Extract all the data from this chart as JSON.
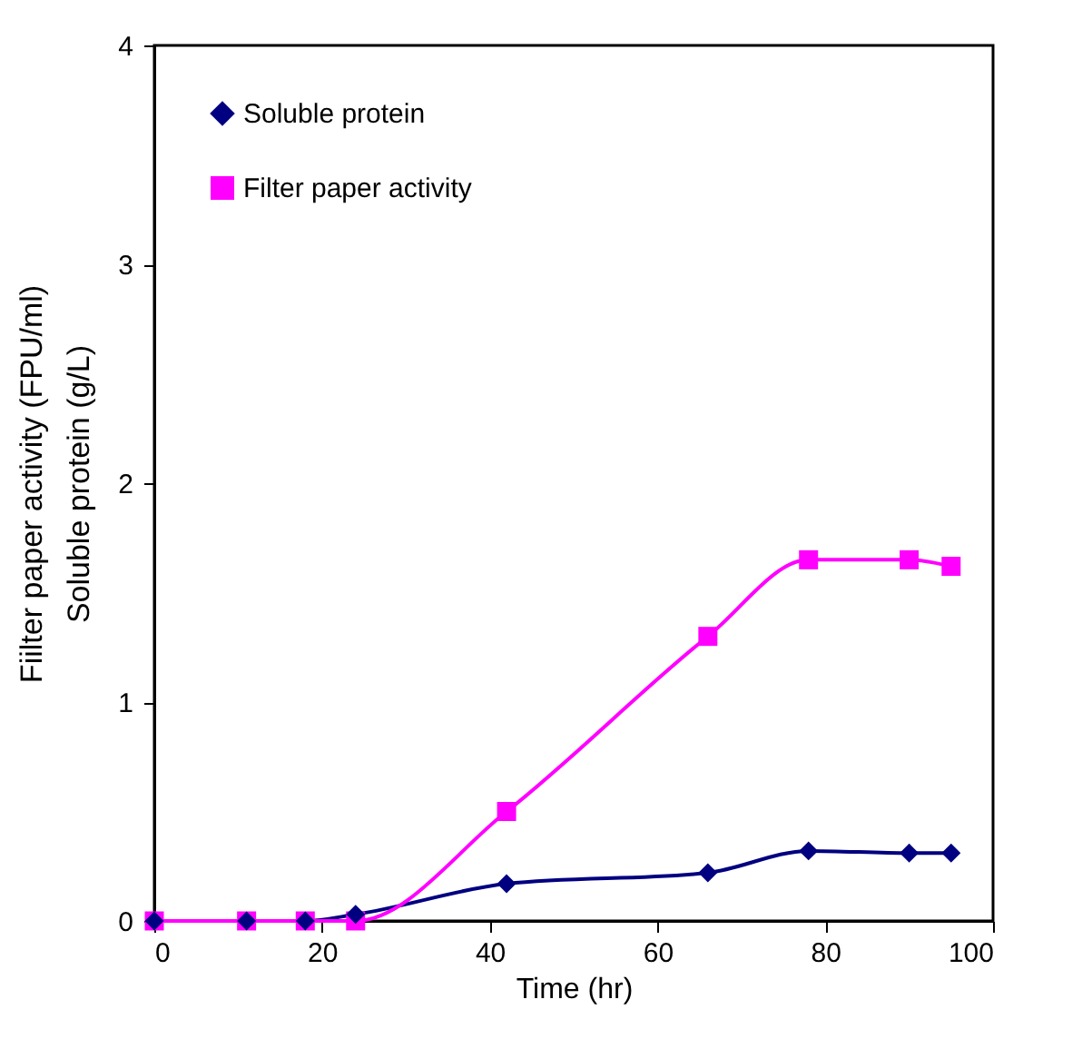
{
  "chart_data": {
    "type": "line",
    "xlabel": "Time (hr)",
    "ylabel": "Fiilter paper activity (FPU/ml)\nSoluble protein (g/L)",
    "x": [
      0,
      11,
      18,
      24,
      42,
      66,
      78,
      90,
      95
    ],
    "series": [
      {
        "name": "Soluble protein",
        "color": "#000080",
        "marker": "diamond",
        "values": [
          0,
          0,
          0,
          0.03,
          0.17,
          0.22,
          0.32,
          0.31,
          0.31
        ]
      },
      {
        "name": "Filter paper activity",
        "color": "#ff00ff",
        "marker": "square",
        "values": [
          0,
          0,
          0,
          0,
          0.5,
          1.3,
          1.65,
          1.65,
          1.62
        ]
      }
    ],
    "xlim": [
      0,
      100
    ],
    "xticks": [
      0,
      20,
      40,
      60,
      80,
      100
    ],
    "ylim": [
      0,
      4
    ],
    "yticks": [
      0,
      1,
      2,
      3,
      4
    ],
    "grid": false,
    "legend": "top left",
    "line_style": "solid"
  }
}
